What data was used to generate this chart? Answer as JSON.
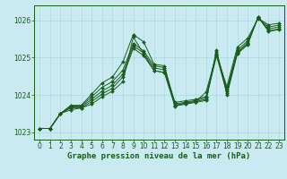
{
  "xlabel": "Graphe pression niveau de la mer (hPa)",
  "ylim": [
    1022.8,
    1026.4
  ],
  "xlim": [
    -0.5,
    23.5
  ],
  "yticks": [
    1023,
    1024,
    1025,
    1026
  ],
  "xticks": [
    0,
    1,
    2,
    3,
    4,
    5,
    6,
    7,
    8,
    9,
    10,
    11,
    12,
    13,
    14,
    15,
    16,
    17,
    18,
    19,
    20,
    21,
    22,
    23
  ],
  "bg_color": "#c8eaf0",
  "grid_color": "#b0d8e0",
  "line_color": "#1a5c1a",
  "lines": [
    [
      1023.1,
      1023.1,
      1023.5,
      1023.6,
      1023.65,
      1023.75,
      1023.95,
      1024.1,
      1024.35,
      1025.55,
      1025.1,
      1024.65,
      1024.6,
      1023.7,
      1023.75,
      1023.8,
      1023.85,
      1025.2,
      1024.0,
      1025.1,
      1025.35,
      1026.1,
      1025.7,
      1025.75
    ],
    [
      1023.1,
      1023.1,
      1023.5,
      1023.65,
      1023.65,
      1023.82,
      1024.02,
      1024.18,
      1024.48,
      1025.25,
      1025.05,
      1024.65,
      1024.6,
      1023.72,
      1023.77,
      1023.82,
      1023.88,
      1025.05,
      1024.05,
      1025.12,
      1025.37,
      1026.08,
      1025.72,
      1025.77
    ],
    [
      1023.1,
      1023.1,
      1023.5,
      1023.68,
      1023.68,
      1023.88,
      1024.1,
      1024.26,
      1024.56,
      1025.32,
      1025.12,
      1024.72,
      1024.67,
      1023.76,
      1023.8,
      1023.85,
      1023.92,
      1025.1,
      1024.1,
      1025.15,
      1025.4,
      1026.07,
      1025.77,
      1025.82
    ],
    [
      1023.1,
      1023.1,
      1023.5,
      1023.7,
      1023.7,
      1023.95,
      1024.2,
      1024.36,
      1024.66,
      1025.38,
      1025.18,
      1024.78,
      1024.73,
      1023.8,
      1023.84,
      1023.88,
      1023.96,
      1025.15,
      1024.15,
      1025.2,
      1025.45,
      1026.06,
      1025.82,
      1025.87
    ],
    [
      1023.1,
      1023.1,
      1023.5,
      1023.72,
      1023.72,
      1024.02,
      1024.32,
      1024.48,
      1024.88,
      1025.62,
      1025.42,
      1024.82,
      1024.78,
      1023.72,
      1023.78,
      1023.82,
      1024.08,
      1025.08,
      1024.22,
      1025.28,
      1025.52,
      1026.05,
      1025.88,
      1025.92
    ]
  ],
  "text_color": "#1a5c1a",
  "tick_fontsize": 5.5,
  "label_fontsize": 6.5,
  "marker": "D",
  "marker_size": 2.0,
  "linewidth": 0.7
}
